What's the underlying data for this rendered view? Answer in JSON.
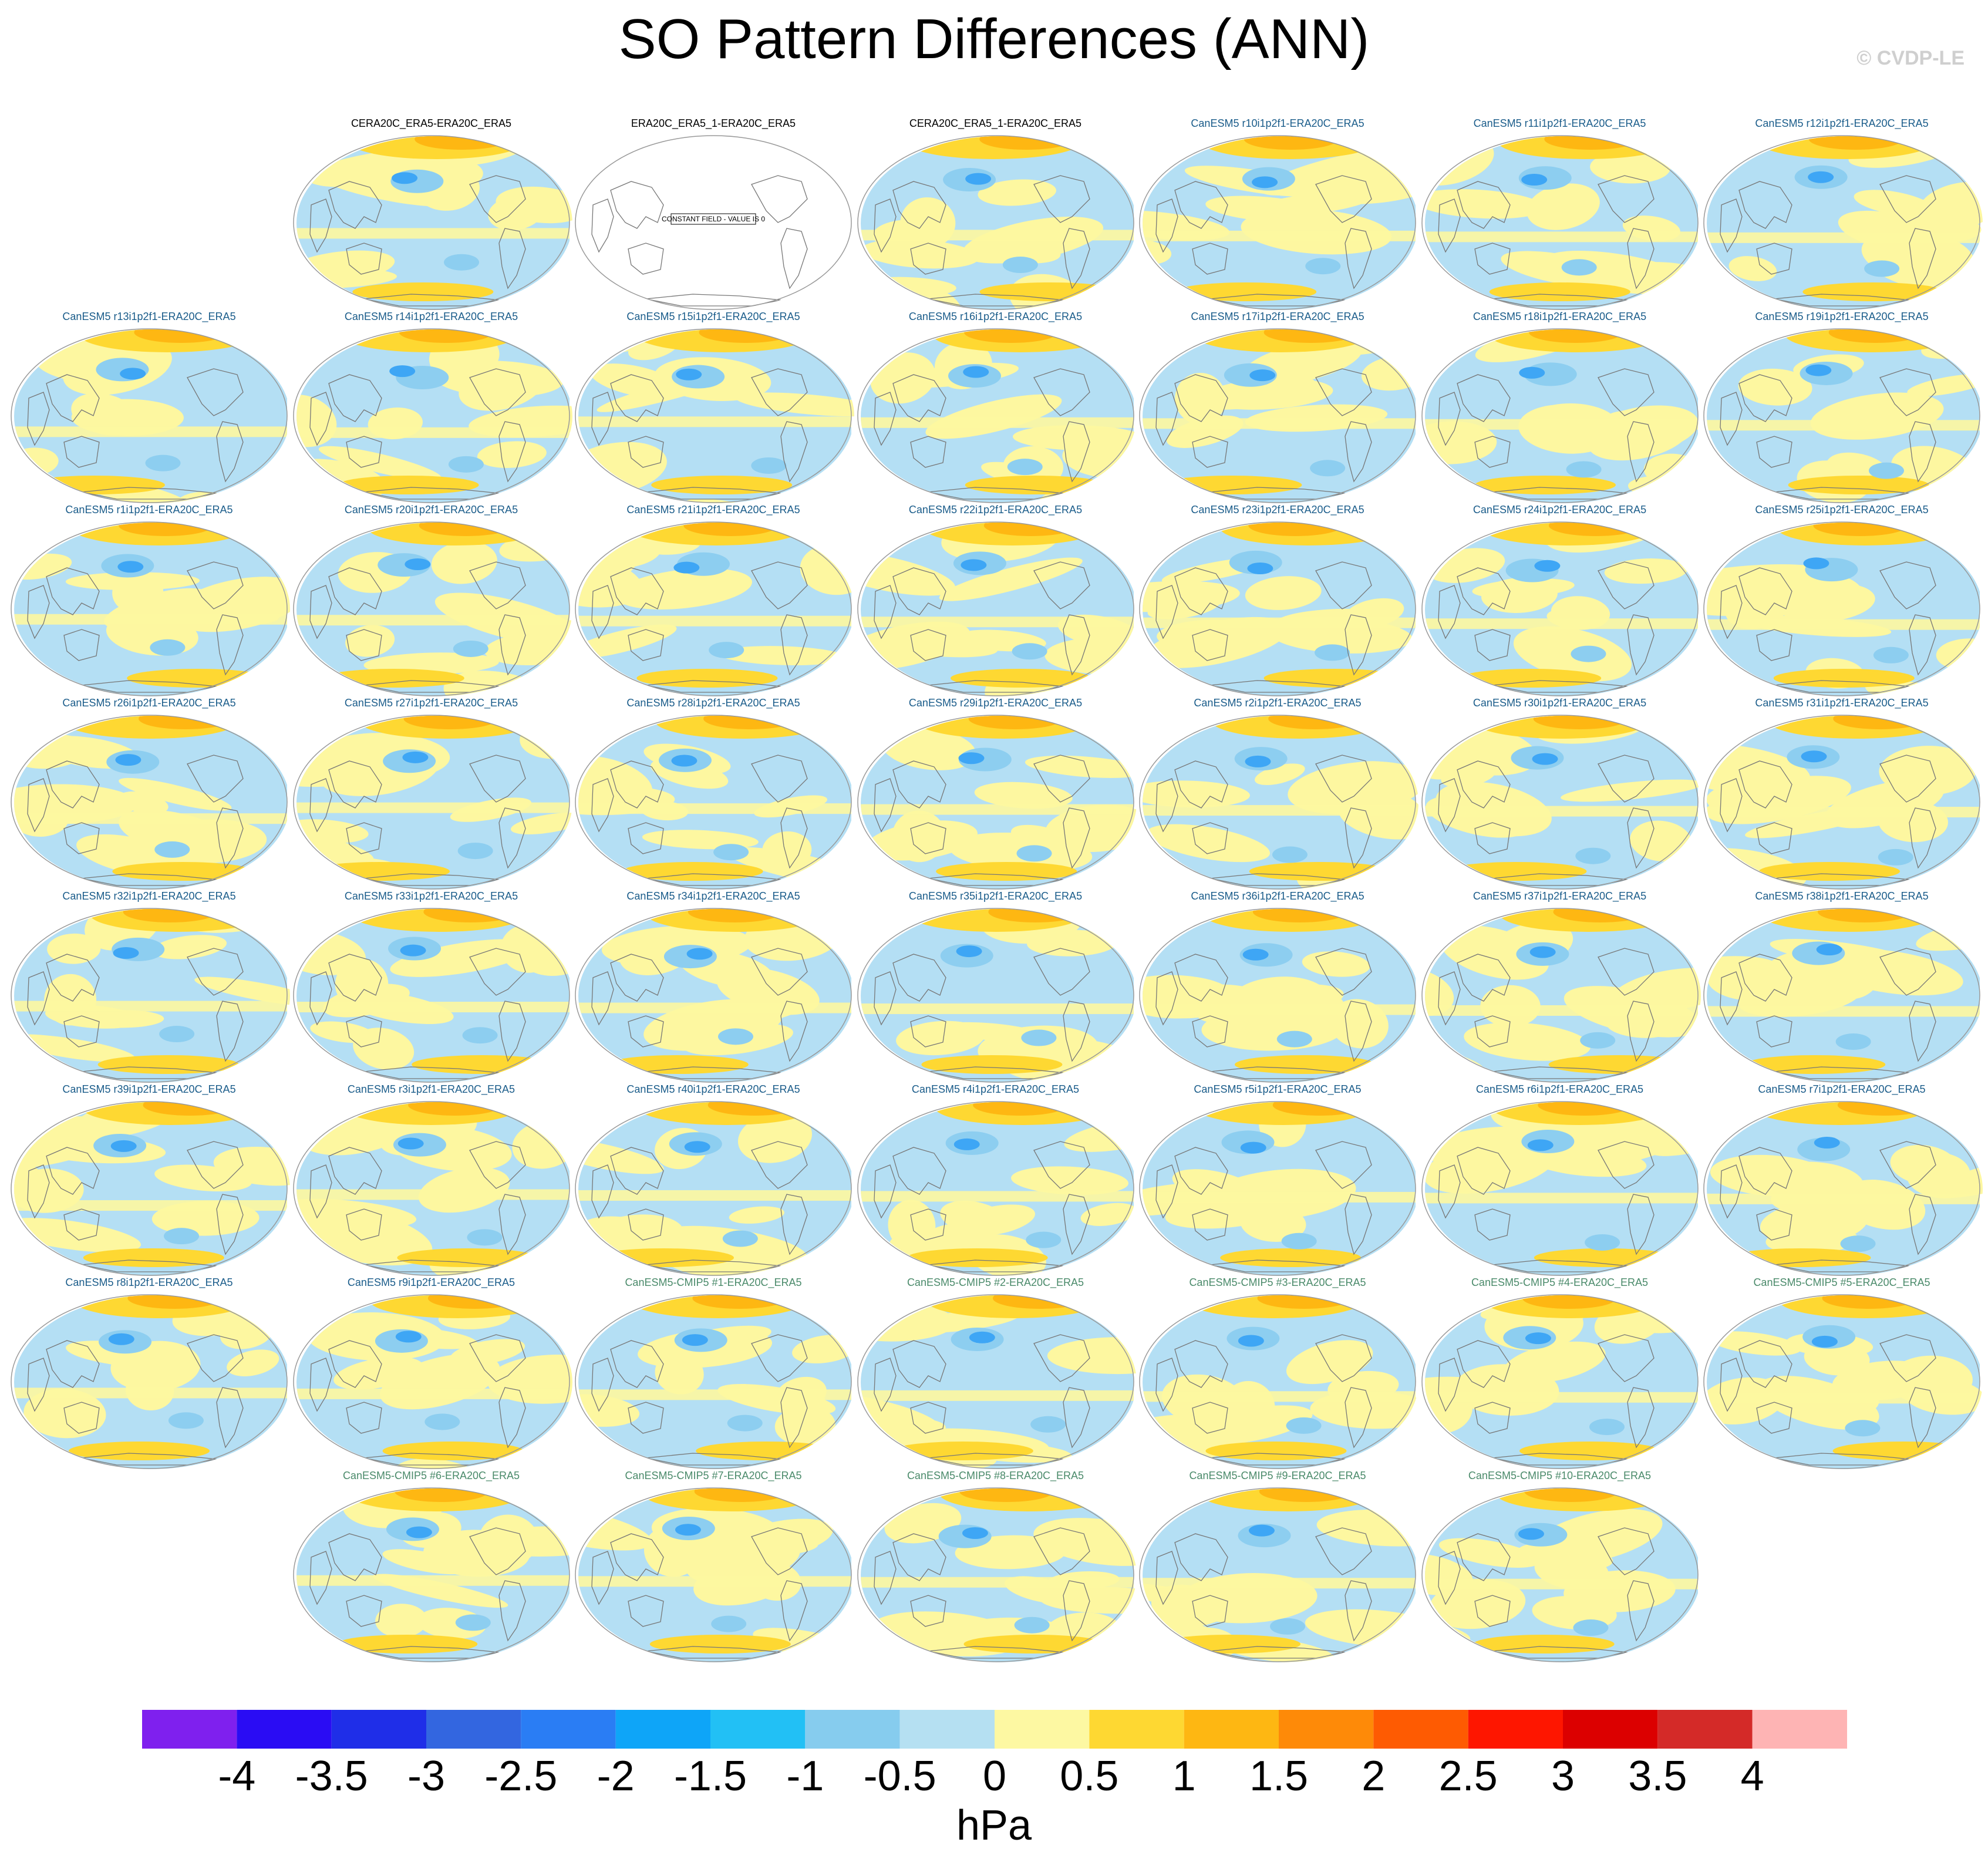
{
  "title": "SO Pattern Differences (ANN)",
  "copyright": "© CVDP-LE",
  "constant_field_note": "CONSTANT FIELD - VALUE IS 0",
  "colors": {
    "land_outline": "#777777",
    "map_border": "#999999",
    "negative_small": "#b4dff4",
    "positive_small": "#fdf7a0",
    "moderate_positive": "#fed832",
    "strong_positive": "#feb712",
    "moderate_negative": "#8dcef0",
    "strong_negative": "#3ea6f5"
  },
  "panels": [
    {
      "label": "CERA20C_ERA5-ERA20C_ERA5",
      "kind": "obs",
      "row": 0,
      "col": 1
    },
    {
      "label": "ERA20C_ERA5_1-ERA20C_ERA5",
      "kind": "obs",
      "row": 0,
      "col": 2,
      "constant": true
    },
    {
      "label": "CERA20C_ERA5_1-ERA20C_ERA5",
      "kind": "obs",
      "row": 0,
      "col": 3
    },
    {
      "label": "CanESM5 r10i1p2f1-ERA20C_ERA5",
      "kind": "model",
      "row": 0,
      "col": 4
    },
    {
      "label": "CanESM5 r11i1p2f1-ERA20C_ERA5",
      "kind": "model",
      "row": 0,
      "col": 5
    },
    {
      "label": "CanESM5 r12i1p2f1-ERA20C_ERA5",
      "kind": "model",
      "row": 0,
      "col": 6
    },
    {
      "label": "CanESM5 r13i1p2f1-ERA20C_ERA5",
      "kind": "model",
      "row": 1,
      "col": 0
    },
    {
      "label": "CanESM5 r14i1p2f1-ERA20C_ERA5",
      "kind": "model",
      "row": 1,
      "col": 1
    },
    {
      "label": "CanESM5 r15i1p2f1-ERA20C_ERA5",
      "kind": "model",
      "row": 1,
      "col": 2
    },
    {
      "label": "CanESM5 r16i1p2f1-ERA20C_ERA5",
      "kind": "model",
      "row": 1,
      "col": 3
    },
    {
      "label": "CanESM5 r17i1p2f1-ERA20C_ERA5",
      "kind": "model",
      "row": 1,
      "col": 4
    },
    {
      "label": "CanESM5 r18i1p2f1-ERA20C_ERA5",
      "kind": "model",
      "row": 1,
      "col": 5
    },
    {
      "label": "CanESM5 r19i1p2f1-ERA20C_ERA5",
      "kind": "model",
      "row": 1,
      "col": 6
    },
    {
      "label": "CanESM5 r1i1p2f1-ERA20C_ERA5",
      "kind": "model",
      "row": 2,
      "col": 0
    },
    {
      "label": "CanESM5 r20i1p2f1-ERA20C_ERA5",
      "kind": "model",
      "row": 2,
      "col": 1
    },
    {
      "label": "CanESM5 r21i1p2f1-ERA20C_ERA5",
      "kind": "model",
      "row": 2,
      "col": 2
    },
    {
      "label": "CanESM5 r22i1p2f1-ERA20C_ERA5",
      "kind": "model",
      "row": 2,
      "col": 3
    },
    {
      "label": "CanESM5 r23i1p2f1-ERA20C_ERA5",
      "kind": "model",
      "row": 2,
      "col": 4
    },
    {
      "label": "CanESM5 r24i1p2f1-ERA20C_ERA5",
      "kind": "model",
      "row": 2,
      "col": 5
    },
    {
      "label": "CanESM5 r25i1p2f1-ERA20C_ERA5",
      "kind": "model",
      "row": 2,
      "col": 6
    },
    {
      "label": "CanESM5 r26i1p2f1-ERA20C_ERA5",
      "kind": "model",
      "row": 3,
      "col": 0
    },
    {
      "label": "CanESM5 r27i1p2f1-ERA20C_ERA5",
      "kind": "model",
      "row": 3,
      "col": 1
    },
    {
      "label": "CanESM5 r28i1p2f1-ERA20C_ERA5",
      "kind": "model",
      "row": 3,
      "col": 2
    },
    {
      "label": "CanESM5 r29i1p2f1-ERA20C_ERA5",
      "kind": "model",
      "row": 3,
      "col": 3
    },
    {
      "label": "CanESM5 r2i1p2f1-ERA20C_ERA5",
      "kind": "model",
      "row": 3,
      "col": 4
    },
    {
      "label": "CanESM5 r30i1p2f1-ERA20C_ERA5",
      "kind": "model",
      "row": 3,
      "col": 5
    },
    {
      "label": "CanESM5 r31i1p2f1-ERA20C_ERA5",
      "kind": "model",
      "row": 3,
      "col": 6
    },
    {
      "label": "CanESM5 r32i1p2f1-ERA20C_ERA5",
      "kind": "model",
      "row": 4,
      "col": 0
    },
    {
      "label": "CanESM5 r33i1p2f1-ERA20C_ERA5",
      "kind": "model",
      "row": 4,
      "col": 1
    },
    {
      "label": "CanESM5 r34i1p2f1-ERA20C_ERA5",
      "kind": "model",
      "row": 4,
      "col": 2
    },
    {
      "label": "CanESM5 r35i1p2f1-ERA20C_ERA5",
      "kind": "model",
      "row": 4,
      "col": 3
    },
    {
      "label": "CanESM5 r36i1p2f1-ERA20C_ERA5",
      "kind": "model",
      "row": 4,
      "col": 4
    },
    {
      "label": "CanESM5 r37i1p2f1-ERA20C_ERA5",
      "kind": "model",
      "row": 4,
      "col": 5
    },
    {
      "label": "CanESM5 r38i1p2f1-ERA20C_ERA5",
      "kind": "model",
      "row": 4,
      "col": 6
    },
    {
      "label": "CanESM5 r39i1p2f1-ERA20C_ERA5",
      "kind": "model",
      "row": 5,
      "col": 0
    },
    {
      "label": "CanESM5 r3i1p2f1-ERA20C_ERA5",
      "kind": "model",
      "row": 5,
      "col": 1
    },
    {
      "label": "CanESM5 r40i1p2f1-ERA20C_ERA5",
      "kind": "model",
      "row": 5,
      "col": 2
    },
    {
      "label": "CanESM5 r4i1p2f1-ERA20C_ERA5",
      "kind": "model",
      "row": 5,
      "col": 3
    },
    {
      "label": "CanESM5 r5i1p2f1-ERA20C_ERA5",
      "kind": "model",
      "row": 5,
      "col": 4
    },
    {
      "label": "CanESM5 r6i1p2f1-ERA20C_ERA5",
      "kind": "model",
      "row": 5,
      "col": 5
    },
    {
      "label": "CanESM5 r7i1p2f1-ERA20C_ERA5",
      "kind": "model",
      "row": 5,
      "col": 6
    },
    {
      "label": "CanESM5 r8i1p2f1-ERA20C_ERA5",
      "kind": "model",
      "row": 6,
      "col": 0
    },
    {
      "label": "CanESM5 r9i1p2f1-ERA20C_ERA5",
      "kind": "model",
      "row": 6,
      "col": 1
    },
    {
      "label": "CanESM5-CMIP5 #1-ERA20C_ERA5",
      "kind": "mmm",
      "row": 6,
      "col": 2
    },
    {
      "label": "CanESM5-CMIP5 #2-ERA20C_ERA5",
      "kind": "mmm",
      "row": 6,
      "col": 3
    },
    {
      "label": "CanESM5-CMIP5 #3-ERA20C_ERA5",
      "kind": "mmm",
      "row": 6,
      "col": 4
    },
    {
      "label": "CanESM5-CMIP5 #4-ERA20C_ERA5",
      "kind": "mmm",
      "row": 6,
      "col": 5
    },
    {
      "label": "CanESM5-CMIP5 #5-ERA20C_ERA5",
      "kind": "mmm",
      "row": 6,
      "col": 6
    },
    {
      "label": "CanESM5-CMIP5 #6-ERA20C_ERA5",
      "kind": "mmm",
      "row": 7,
      "col": 1
    },
    {
      "label": "CanESM5-CMIP5 #7-ERA20C_ERA5",
      "kind": "mmm",
      "row": 7,
      "col": 2
    },
    {
      "label": "CanESM5-CMIP5 #8-ERA20C_ERA5",
      "kind": "mmm",
      "row": 7,
      "col": 3
    },
    {
      "label": "CanESM5-CMIP5 #9-ERA20C_ERA5",
      "kind": "mmm",
      "row": 7,
      "col": 4
    },
    {
      "label": "CanESM5-CMIP5 #10-ERA20C_ERA5",
      "kind": "mmm",
      "row": 7,
      "col": 5
    }
  ],
  "colorbar": {
    "units": "hPa",
    "ticks": [
      "-4",
      "-3.5",
      "-3",
      "-2.5",
      "-2",
      "-1.5",
      "-1",
      "-0.5",
      "0",
      "0.5",
      "1",
      "1.5",
      "2",
      "2.5",
      "3",
      "3.5",
      "4"
    ],
    "colors": [
      "#7f20ee",
      "#2a0cf4",
      "#1f2ee8",
      "#3366e0",
      "#2a7df4",
      "#0ea5f8",
      "#22c0f5",
      "#86ccee",
      "#b5e0f2",
      "#fdf8a2",
      "#fed832",
      "#feb712",
      "#fe8a08",
      "#fe5b02",
      "#fe1600",
      "#dc0000",
      "#d42a28",
      "#feb4b4"
    ]
  }
}
